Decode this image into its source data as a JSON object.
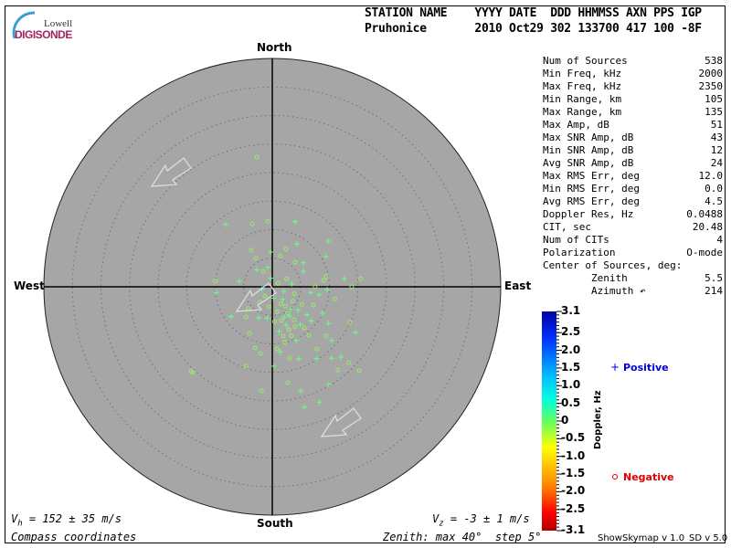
{
  "logo": {
    "line1": "Lowell",
    "line2": "DIGISONDE"
  },
  "header": {
    "row1": "STATION NAME    YYYY DATE  DDD HHMMSS AXN PPS IGP",
    "row2": "Pruhonice       2010 Oct29 302 133700 417 100 -8F"
  },
  "compass": {
    "north": "North",
    "south": "South",
    "east": "East",
    "west": "West"
  },
  "stats": [
    {
      "label": "Num of Sources",
      "value": "538"
    },
    {
      "label": "Min Freq, kHz",
      "value": "2000"
    },
    {
      "label": "Max Freq, kHz",
      "value": "2350"
    },
    {
      "label": "Min Range, km",
      "value": "105"
    },
    {
      "label": "Max Range, km",
      "value": "135"
    },
    {
      "label": "Max Amp, dB",
      "value": "51"
    },
    {
      "label": "Max SNR Amp, dB",
      "value": "43"
    },
    {
      "label": "Min SNR Amp, dB",
      "value": "12"
    },
    {
      "label": "Avg SNR Amp, dB",
      "value": "24"
    },
    {
      "label": "Max RMS Err, deg",
      "value": "12.0"
    },
    {
      "label": "Min RMS Err, deg",
      "value": "0.0"
    },
    {
      "label": "Avg RMS Err, deg",
      "value": "4.5"
    },
    {
      "label": "Doppler Res, Hz",
      "value": "0.0488"
    },
    {
      "label": "CIT, sec",
      "value": "20.48"
    },
    {
      "label": "Num of CITs",
      "value": "4"
    },
    {
      "label": "Polarization",
      "value": "O-mode"
    },
    {
      "label": "Center of Sources, deg:",
      "value": ""
    },
    {
      "label": "        Zenith",
      "value": "5.5"
    },
    {
      "label": "        Azimuth ↶",
      "value": "214"
    }
  ],
  "footer": {
    "vh": "V",
    "vh_sub": "h",
    "vh_val": " = 152 ± 35 m/s",
    "vz": "V",
    "vz_sub": "z",
    "vz_val": " = -3 ± 1 m/s",
    "coords": "Compass coordinates",
    "zenith": "Zenith: max 40°  step 5°",
    "version1": "ShowSkymap v 1.0",
    "version2": "SD v 5.0"
  },
  "legend": {
    "positive": "Positive",
    "negative": "Negative",
    "positive_color": "#0000e0",
    "negative_color": "#e00000"
  },
  "chart_data": {
    "type": "scatter",
    "projection": "polar skymap, compass coordinates",
    "zenith_max_deg": 40,
    "zenith_step_deg": 5,
    "grid": true,
    "colorbar": {
      "label": "Doppler, Hz",
      "range": [
        -3.1,
        3.1
      ],
      "ticks": [
        "3.1",
        "2.5",
        "2.0",
        "1.5",
        "1.0",
        "0.5",
        "0",
        "-0.5",
        "-1.0",
        "-1.5",
        "-2.0",
        "-2.5",
        "-3.1"
      ],
      "tick_values": [
        3.1,
        2.5,
        2.0,
        1.5,
        1.0,
        0.5,
        0,
        -0.5,
        -1.0,
        -1.5,
        -2.0,
        -2.5,
        -3.1
      ]
    },
    "point_colors": {
      "positive": "#66ff88",
      "negative": "#99ee66"
    },
    "points_note_units": "east_deg, north_deg",
    "points": [
      [
        -8.2,
        10.9,
        "+"
      ],
      [
        4.0,
        11.4,
        "+"
      ],
      [
        -0.8,
        11.5,
        "o"
      ],
      [
        -2.7,
        22.7,
        "o"
      ],
      [
        9.8,
        8.0,
        "+"
      ],
      [
        9.4,
        5.3,
        "+"
      ],
      [
        12.6,
        1.4,
        "+"
      ],
      [
        15.5,
        1.4,
        "o"
      ],
      [
        13.9,
        0,
        "o"
      ],
      [
        -9.8,
        -1.0,
        "+"
      ],
      [
        -5.8,
        1.0,
        "+"
      ],
      [
        -3.7,
        6.4,
        "o"
      ],
      [
        -2.9,
        5.0,
        "o"
      ],
      [
        -0.3,
        6.1,
        "+"
      ],
      [
        2.4,
        6.6,
        "o"
      ],
      [
        4.3,
        7.5,
        "+"
      ],
      [
        -13.9,
        -15.0,
        "o"
      ],
      [
        -4.6,
        -13.9,
        "o"
      ],
      [
        -1.9,
        -18.2,
        "o"
      ],
      [
        0.3,
        -13.9,
        "+"
      ],
      [
        2.7,
        -16.8,
        "o"
      ],
      [
        5.0,
        -18.2,
        "+"
      ],
      [
        8.3,
        -20.2,
        "+"
      ],
      [
        5.6,
        -21.1,
        "+"
      ],
      [
        9.9,
        -17.1,
        "+"
      ],
      [
        13.4,
        -13.3,
        "o"
      ],
      [
        15.2,
        -14.7,
        "o"
      ],
      [
        14.6,
        -8.0,
        "+"
      ],
      [
        13.6,
        -6.2,
        "o"
      ],
      [
        11.5,
        -14.6,
        "o"
      ],
      [
        12.0,
        -12.3,
        "+"
      ],
      [
        10.4,
        -12.5,
        "+"
      ],
      [
        7.8,
        -12.6,
        "+"
      ],
      [
        10.4,
        -9.4,
        "+"
      ],
      [
        9.4,
        -8.6,
        "o"
      ],
      [
        -4.0,
        -8.2,
        "o"
      ],
      [
        -3.0,
        -10.7,
        "o"
      ],
      [
        -2.1,
        -11.7,
        "o"
      ],
      [
        -4.6,
        -5.3,
        "o"
      ],
      [
        -4.2,
        -3.8,
        "o"
      ],
      [
        -2.4,
        -5.4,
        "+"
      ],
      [
        0.8,
        -10.9,
        "o"
      ],
      [
        1.4,
        -11.4,
        "+"
      ],
      [
        3.0,
        -12.5,
        "o"
      ],
      [
        4.6,
        -12.6,
        "+"
      ],
      [
        7.8,
        -10.9,
        "o"
      ],
      [
        8.8,
        -4.6,
        "+"
      ],
      [
        9.8,
        -6.4,
        "+"
      ],
      [
        11.0,
        -2.1,
        "o"
      ],
      [
        9.6,
        -0.5,
        "+"
      ],
      [
        8.2,
        -1.4,
        "+"
      ],
      [
        6.7,
        -1.0,
        "+"
      ],
      [
        7.5,
        0,
        "o"
      ],
      [
        9.0,
        1.1,
        "o"
      ],
      [
        9.4,
        1.8,
        "o"
      ],
      [
        5.4,
        4.2,
        "+"
      ],
      [
        5.4,
        2.7,
        "+"
      ],
      [
        4.0,
        4.3,
        "o"
      ],
      [
        1.4,
        5.4,
        "o"
      ],
      [
        -0.8,
        3.4,
        "+"
      ],
      [
        -1.6,
        2.7,
        "o"
      ],
      [
        -2.7,
        3.0,
        "+"
      ],
      [
        -7.2,
        -5.2,
        "+"
      ],
      [
        -14.2,
        -14.8,
        "o"
      ],
      [
        -10.0,
        1.0,
        "o"
      ],
      [
        -3.5,
        11.0,
        "o"
      ],
      [
        2.7,
        -4.6,
        "o"
      ],
      [
        3.2,
        -3.9,
        "+"
      ],
      [
        2.1,
        -5.3,
        "+"
      ],
      [
        1.5,
        -3.0,
        "o"
      ],
      [
        3.8,
        -5.8,
        "o"
      ],
      [
        2.4,
        -6.7,
        "+"
      ],
      [
        4.5,
        -4.1,
        "+"
      ],
      [
        0.9,
        -4.4,
        "o"
      ],
      [
        1.8,
        -2.2,
        "+"
      ],
      [
        3.6,
        -2.5,
        "o"
      ],
      [
        2.9,
        -7.5,
        "o"
      ],
      [
        4.9,
        -6.6,
        "+"
      ],
      [
        0.4,
        -6.1,
        "o"
      ],
      [
        1.2,
        -7.8,
        "+"
      ],
      [
        3.3,
        -8.6,
        "o"
      ],
      [
        5.6,
        -7.2,
        "o"
      ],
      [
        6.1,
        -4.9,
        "+"
      ],
      [
        5.2,
        -3.1,
        "o"
      ],
      [
        0.2,
        -2.0,
        "+"
      ],
      [
        -0.6,
        -3.5,
        "o"
      ],
      [
        -0.9,
        -5.5,
        "+"
      ],
      [
        -1.3,
        -1.6,
        "o"
      ],
      [
        2.0,
        -0.8,
        "+"
      ],
      [
        3.9,
        -1.2,
        "o"
      ],
      [
        4.2,
        -9.4,
        "+"
      ],
      [
        2.2,
        -9.7,
        "o"
      ],
      [
        6.8,
        -6.0,
        "+"
      ],
      [
        6.4,
        -8.5,
        "o"
      ],
      [
        7.2,
        -3.2,
        "o"
      ],
      [
        1.0,
        0.6,
        "o"
      ],
      [
        -0.3,
        1.5,
        "+"
      ],
      [
        2.5,
        1.4,
        "o"
      ],
      [
        3.4,
        0.5,
        "+"
      ],
      [
        -1.8,
        -0.4,
        "+"
      ],
      [
        -2.2,
        -2.7,
        "o"
      ],
      [
        1.6,
        -5.9,
        "o"
      ],
      [
        3.0,
        -5.1,
        "+"
      ],
      [
        2.3,
        -3.4,
        "o"
      ],
      [
        4.0,
        -7.0,
        "o"
      ],
      [
        1.9,
        -8.6,
        "o"
      ]
    ]
  }
}
